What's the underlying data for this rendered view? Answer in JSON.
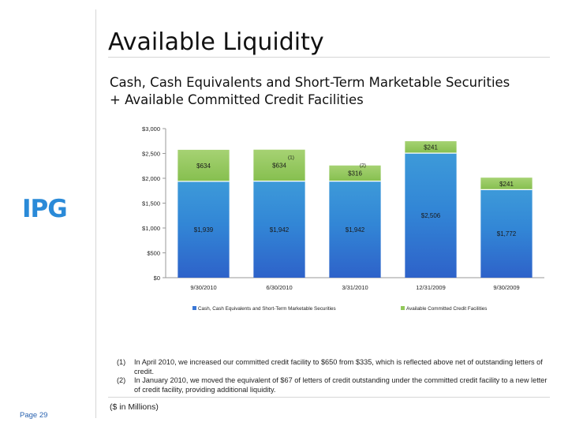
{
  "title": "Available Liquidity",
  "subtitle": {
    "line1": "Cash, Cash Equivalents and Short-Term Marketable Securities",
    "line2": "+ Available Committed Credit Facilities"
  },
  "logo": {
    "text": "IPG"
  },
  "colors": {
    "cash": "#3a78d6",
    "credit": "#92c85a",
    "logo": "#2a8ad8",
    "page_number": "#2a63b0"
  },
  "chart_data": {
    "type": "bar",
    "stacked": true,
    "categories": [
      "9/30/2010",
      "6/30/2010",
      "3/31/2010",
      "12/31/2009",
      "9/30/2009"
    ],
    "series": [
      {
        "name": "Cash, Cash Equivalents and Short-Term Marketable Securities",
        "values": [
          1939,
          1942,
          1942,
          2506,
          1772
        ]
      },
      {
        "name": "Available Committed Credit Facilities",
        "values": [
          634,
          634,
          316,
          241,
          241
        ]
      }
    ],
    "bottom_labels": [
      "$1,939",
      "$1,942",
      "$1,942",
      "$2,506",
      "$1,772"
    ],
    "top_labels": [
      "$634",
      "$634",
      "$316",
      "$241",
      "$241"
    ],
    "footnote_marks": [
      "",
      "(1)",
      "(2)",
      "",
      ""
    ],
    "yticks": [
      "$0",
      "$500",
      "$1,000",
      "$1,500",
      "$2,000",
      "$2,500",
      "$3,000"
    ],
    "ylim": [
      0,
      3000
    ],
    "legend_position": "bottom"
  },
  "footnotes": [
    {
      "num": "(1)",
      "text": "In April 2010, we increased our committed credit facility to $650 from $335, which is reflected above net of outstanding letters of credit."
    },
    {
      "num": "(2)",
      "text": "In January 2010, we moved the equivalent of $67 of letters of credit outstanding under the committed credit facility to a new letter of credit facility, providing additional liquidity."
    }
  ],
  "units_note": "($ in Millions)",
  "page_number": "Page 29"
}
